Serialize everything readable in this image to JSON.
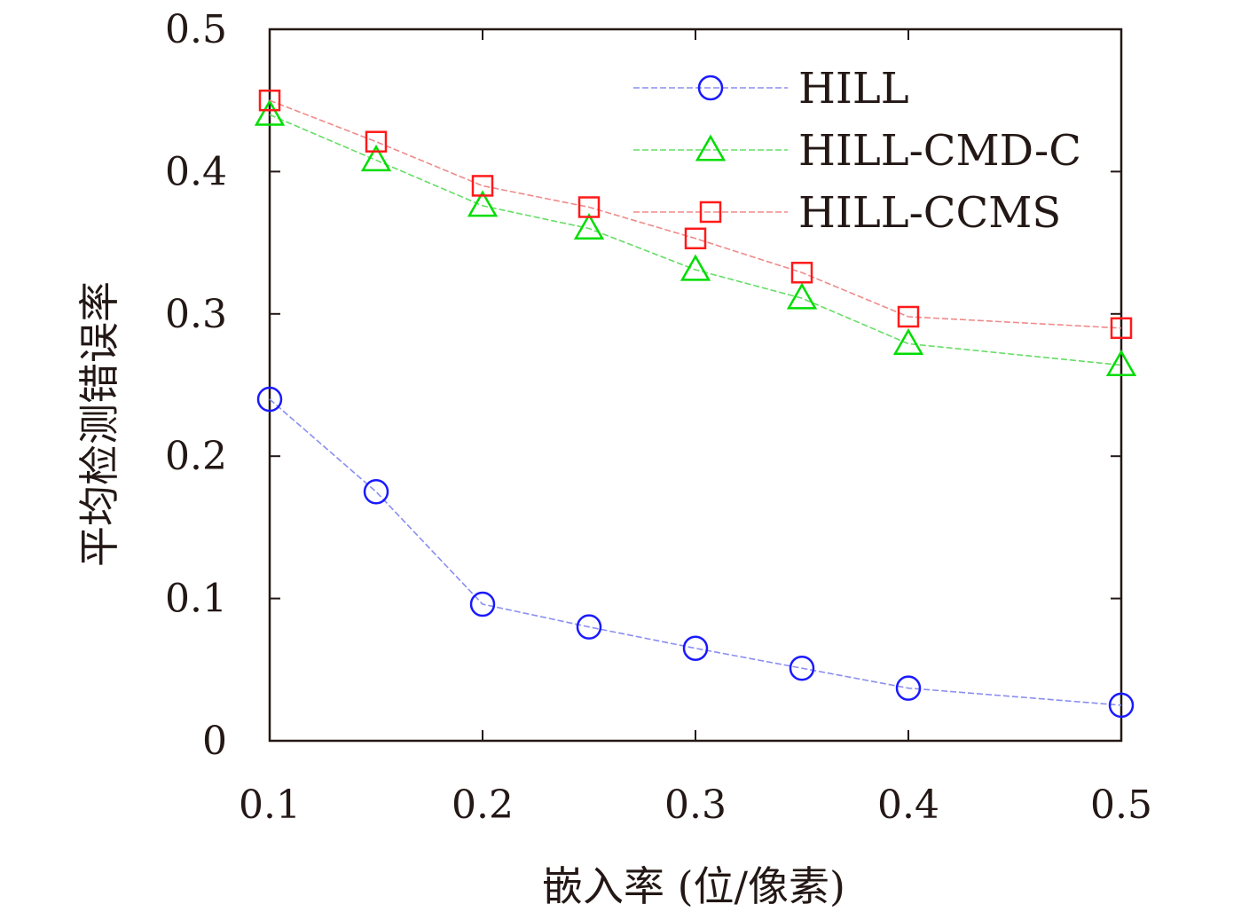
{
  "chart_data": {
    "type": "line",
    "title": "",
    "xlabel": "嵌入率 (位/像素)",
    "ylabel": "平均检测错误率",
    "xlim": [
      0.1,
      0.5
    ],
    "ylim": [
      0,
      0.5
    ],
    "xticks": [
      "0.1",
      "0.2",
      "0.3",
      "0.4",
      "0.5"
    ],
    "yticks": [
      "0",
      "0.1",
      "0.2",
      "0.3",
      "0.4",
      "0.5"
    ],
    "x": [
      0.1,
      0.15,
      0.2,
      0.25,
      0.3,
      0.35,
      0.4,
      0.5
    ],
    "grid": false,
    "legend_position": "top-right",
    "series": [
      {
        "name": "HILL",
        "marker": "circle",
        "color": "#1a1aff",
        "line_color": "#8a8ef0",
        "values": [
          0.24,
          0.175,
          0.096,
          0.08,
          0.065,
          0.051,
          0.037,
          0.025
        ]
      },
      {
        "name": "HILL-CMD-C",
        "marker": "triangle",
        "color": "#00dd00",
        "line_color": "#66dd66",
        "values": [
          0.44,
          0.408,
          0.376,
          0.36,
          0.331,
          0.311,
          0.279,
          0.264
        ]
      },
      {
        "name": "HILL-CCMS",
        "marker": "square",
        "color": "#ff1a1a",
        "line_color": "#f08a8a",
        "values": [
          0.45,
          0.421,
          0.39,
          0.375,
          0.353,
          0.329,
          0.298,
          0.29
        ]
      }
    ]
  }
}
